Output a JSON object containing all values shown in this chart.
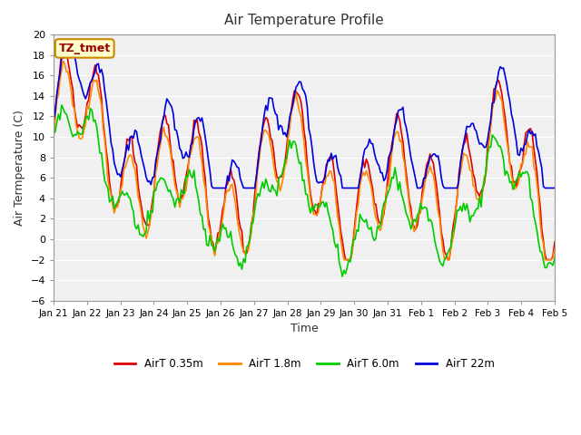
{
  "title": "Air Temperature Profile",
  "xlabel": "Time",
  "ylabel": "Air Termperature (C)",
  "ylim": [
    -6,
    20
  ],
  "yticks": [
    -6,
    -4,
    -2,
    0,
    2,
    4,
    6,
    8,
    10,
    12,
    14,
    16,
    18,
    20
  ],
  "xtick_labels": [
    "Jan 21",
    "Jan 22",
    "Jan 23",
    "Jan 24",
    "Jan 25",
    "Jan 26",
    "Jan 27",
    "Jan 28",
    "Jan 29",
    "Jan 30",
    "Jan 31",
    "Feb 1",
    "Feb 2",
    "Feb 3",
    "Feb 4",
    "Feb 5"
  ],
  "label_box_text": "TZ_tmet",
  "label_box_facecolor": "#ffffcc",
  "label_box_edgecolor": "#cc8800",
  "label_box_textcolor": "#990000",
  "series_colors": [
    "#dd0000",
    "#ff8800",
    "#00cc00",
    "#0000dd"
  ],
  "series_labels": [
    "AirT 0.35m",
    "AirT 1.8m",
    "AirT 6.0m",
    "AirT 22m"
  ],
  "background_color": "#f0f0f0",
  "plot_bg_color": "#f0f0f0",
  "line_width": 1.2,
  "num_points": 336
}
